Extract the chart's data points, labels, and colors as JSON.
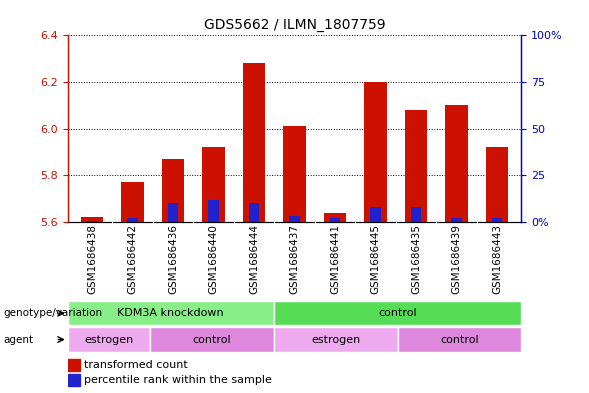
{
  "title": "GDS5662 / ILMN_1807759",
  "samples": [
    "GSM1686438",
    "GSM1686442",
    "GSM1686436",
    "GSM1686440",
    "GSM1686444",
    "GSM1686437",
    "GSM1686441",
    "GSM1686445",
    "GSM1686435",
    "GSM1686439",
    "GSM1686443"
  ],
  "transformed_counts": [
    5.62,
    5.77,
    5.87,
    5.92,
    6.28,
    6.01,
    5.64,
    6.2,
    6.08,
    6.1,
    5.92
  ],
  "percentile_ranks": [
    0.5,
    2.0,
    10.0,
    12.0,
    10.0,
    3.0,
    2.0,
    8.0,
    8.0,
    2.0,
    2.0
  ],
  "ylim_left": [
    5.6,
    6.4
  ],
  "ylim_right": [
    0,
    100
  ],
  "yticks_left": [
    5.6,
    5.8,
    6.0,
    6.2,
    6.4
  ],
  "yticks_right": [
    0,
    25,
    50,
    75,
    100
  ],
  "ytick_labels_right": [
    "0%",
    "25",
    "50",
    "75",
    "100%"
  ],
  "bar_color_red": "#cc1100",
  "bar_color_blue": "#2222cc",
  "bar_width": 0.55,
  "blue_bar_width": 0.25,
  "baseline": 5.6,
  "genotype_groups": [
    {
      "label": "KDM3A knockdown",
      "start": 0,
      "end": 5,
      "color": "#88ee88"
    },
    {
      "label": "control",
      "start": 5,
      "end": 11,
      "color": "#55dd55"
    }
  ],
  "agent_groups": [
    {
      "label": "estrogen",
      "start": 0,
      "end": 2,
      "color": "#eeaaee"
    },
    {
      "label": "control",
      "start": 2,
      "end": 5,
      "color": "#dd88dd"
    },
    {
      "label": "estrogen",
      "start": 5,
      "end": 8,
      "color": "#eeaaee"
    },
    {
      "label": "control",
      "start": 8,
      "end": 11,
      "color": "#dd88dd"
    }
  ],
  "legend_items": [
    {
      "label": "transformed count",
      "color": "#cc1100"
    },
    {
      "label": "percentile rank within the sample",
      "color": "#2222cc"
    }
  ],
  "left_label": "genotype/variation",
  "agent_label": "agent",
  "title_fontsize": 10,
  "tick_fontsize": 8,
  "label_fontsize": 8,
  "grid_color": "#000000",
  "left_axis_color": "#cc1100",
  "right_axis_color": "#0000cc",
  "bg_color": "#ffffff",
  "xtick_bg_color": "#cccccc"
}
